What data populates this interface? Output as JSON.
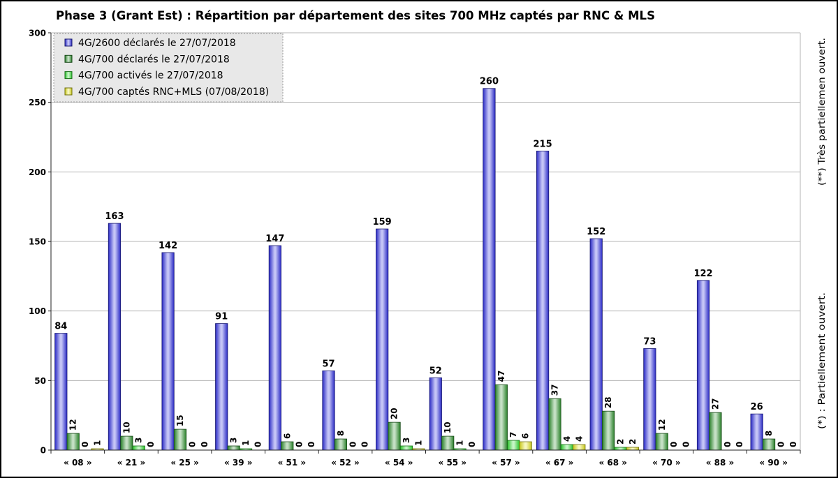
{
  "chart_data": {
    "type": "bar",
    "title": "Phase 3 (Grant Est) : Répartition par département des sites 700 MHz captés par RNC & MLS",
    "categories": [
      "« 08 »",
      "« 21 »",
      "« 25 »",
      "« 39 »",
      "« 51 »",
      "« 52 »",
      "« 54 »",
      "« 55 »",
      "« 57 »",
      "« 67 »",
      "« 68 »",
      "« 70 »",
      "« 88 »",
      "« 90 »"
    ],
    "series": [
      {
        "name": "4G/2600 déclarés le 27/07/2018",
        "color": "#3030e0",
        "values": [
          84,
          163,
          142,
          91,
          147,
          57,
          159,
          52,
          260,
          215,
          152,
          73,
          122,
          26
        ]
      },
      {
        "name": "4G/700 déclarés le 27/07/2018",
        "color": "#2f922f",
        "values": [
          12,
          10,
          15,
          3,
          6,
          8,
          20,
          10,
          47,
          37,
          28,
          12,
          27,
          8
        ]
      },
      {
        "name": "4G/700 activés le 27/07/2018",
        "color": "#30dc30",
        "values": [
          0,
          3,
          0,
          1,
          0,
          0,
          3,
          1,
          7,
          4,
          2,
          0,
          0,
          0
        ]
      },
      {
        "name": "4G/700 captés RNC+MLS (07/08/2018)",
        "color": "#e2e21e",
        "values": [
          1,
          0,
          0,
          0,
          0,
          0,
          1,
          0,
          6,
          4,
          2,
          0,
          0,
          0
        ]
      }
    ],
    "ylim": [
      0,
      300
    ],
    "yticks": [
      0,
      50,
      100,
      150,
      200,
      250,
      300
    ],
    "grid": true,
    "legend": "top-left"
  },
  "notes": {
    "very_partial": "(**) Très partiellemen ouvert.",
    "partial": "(*) : Partiellement ouvert."
  }
}
